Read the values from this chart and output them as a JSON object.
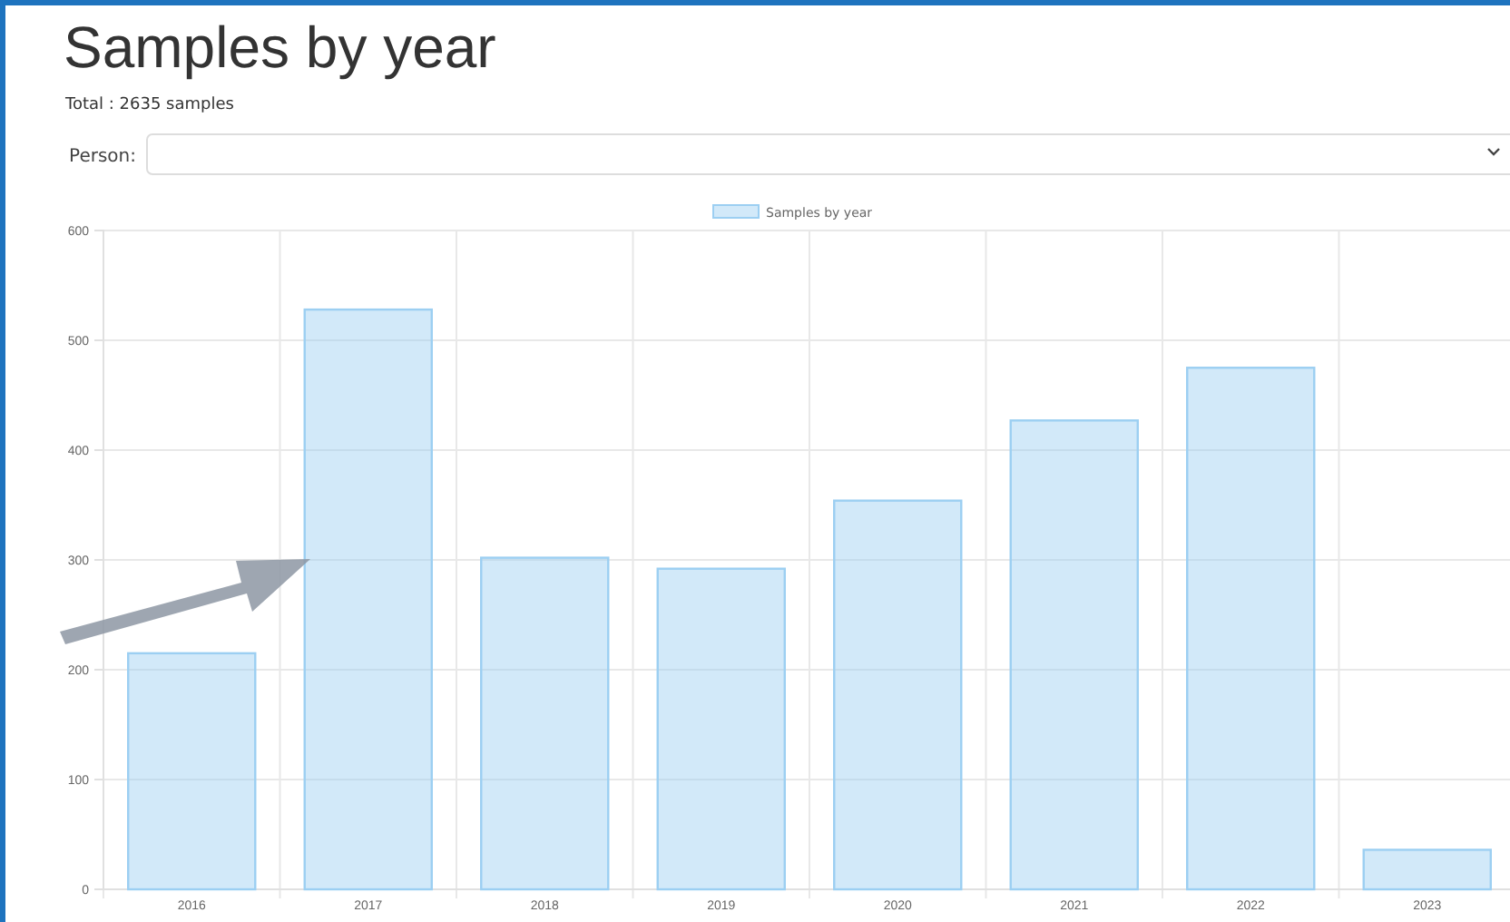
{
  "chart_data": {
    "type": "bar",
    "title": "Samples by year",
    "subtitle": "Total : 2635 samples",
    "annotations": [
      "Person:"
    ],
    "categories": [
      "2016",
      "2017",
      "2018",
      "2019",
      "2020",
      "2021",
      "2022",
      "2023"
    ],
    "series": [
      {
        "name": "Samples by year",
        "color": "#9ccff2",
        "values": [
          215,
          528,
          302,
          292,
          354,
          427,
          475,
          36
        ]
      }
    ],
    "ylim": [
      0,
      600
    ],
    "yticks": [
      0,
      100,
      200,
      300,
      400,
      500,
      600
    ],
    "grid": true,
    "legend": "top"
  }
}
